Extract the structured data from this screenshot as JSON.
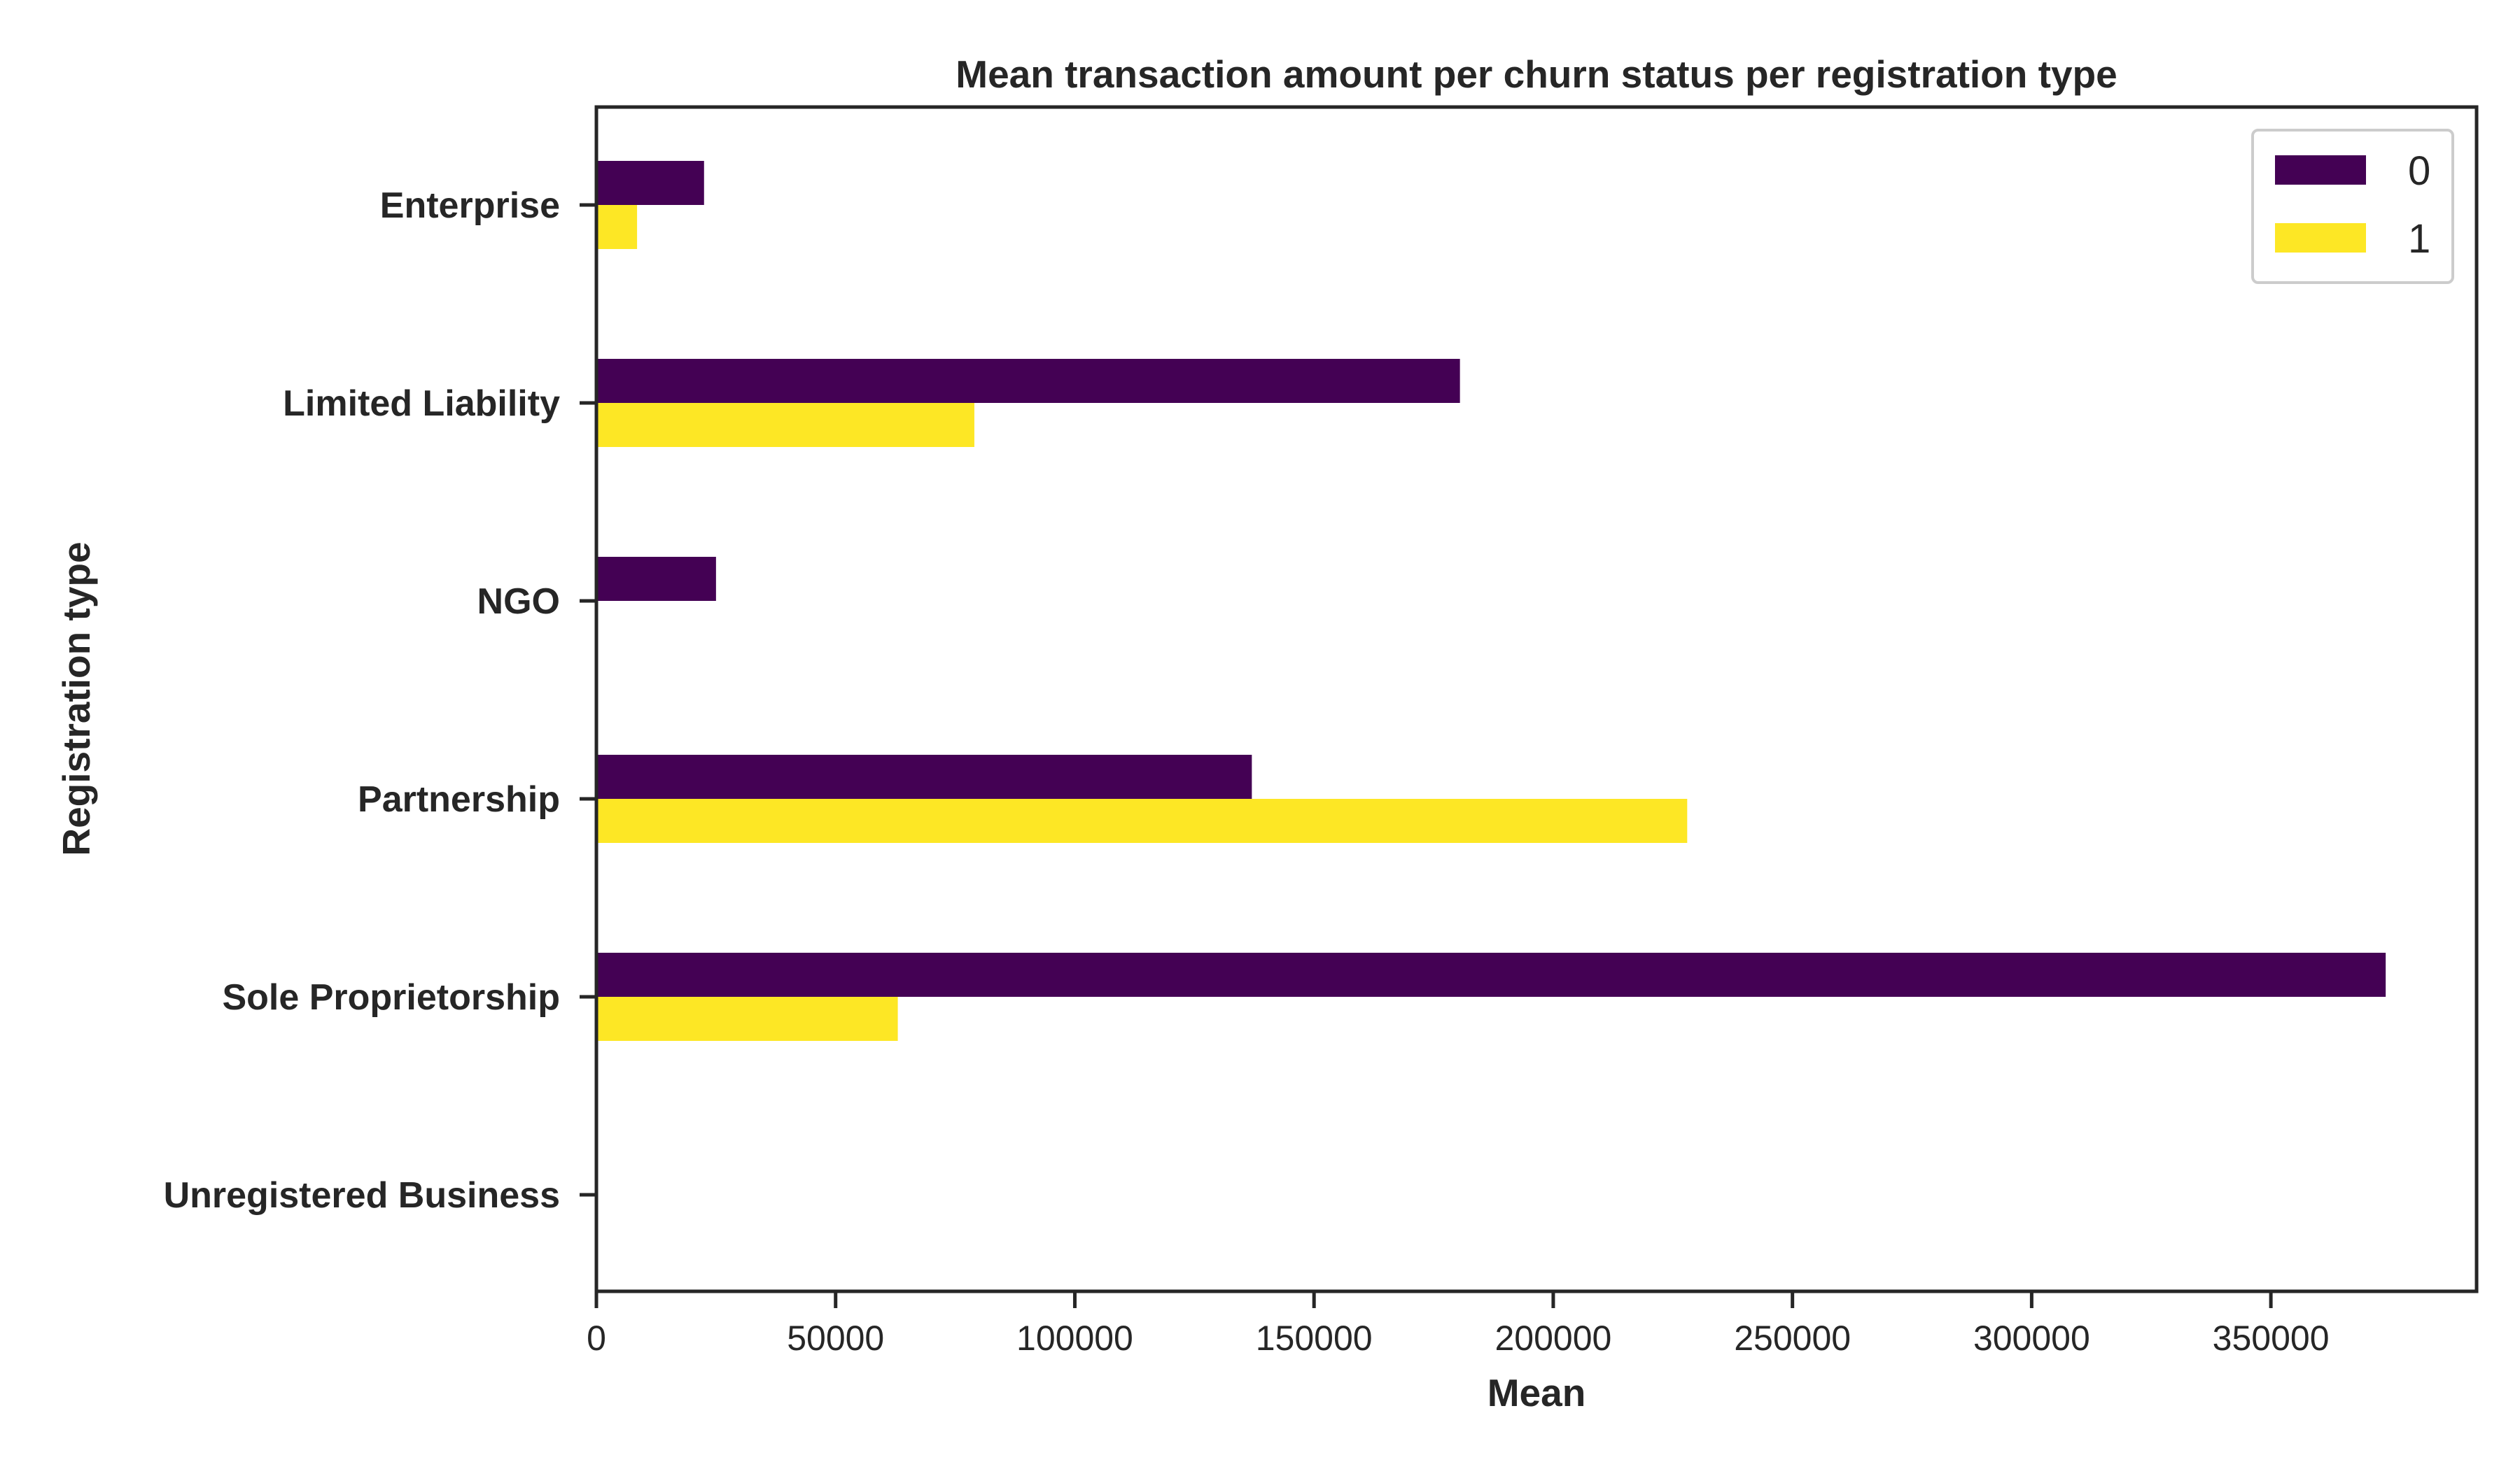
{
  "chart_data": {
    "type": "bar",
    "orientation": "horizontal",
    "title": "Mean transaction amount per churn status per registration type",
    "xlabel": "Mean",
    "ylabel": "Registration type",
    "categories": [
      "Enterprise",
      "Limited Liability",
      "NGO",
      "Partnership",
      "Sole Proprietorship",
      "Unregistered Business"
    ],
    "xlim": [
      0,
      393000
    ],
    "xticks": [
      0,
      50000,
      100000,
      150000,
      200000,
      250000,
      300000,
      350000
    ],
    "xtick_labels": [
      "0",
      "50000",
      "100000",
      "150000",
      "200000",
      "250000",
      "300000",
      "350000"
    ],
    "series": [
      {
        "name": "0",
        "color": "#440154",
        "values": [
          22500,
          180500,
          25000,
          137000,
          374000,
          0
        ]
      },
      {
        "name": "1",
        "color": "#fde725",
        "values": [
          8500,
          79000,
          0,
          228000,
          63000,
          0
        ]
      }
    ],
    "legend_position": "top-right",
    "grid": false
  }
}
